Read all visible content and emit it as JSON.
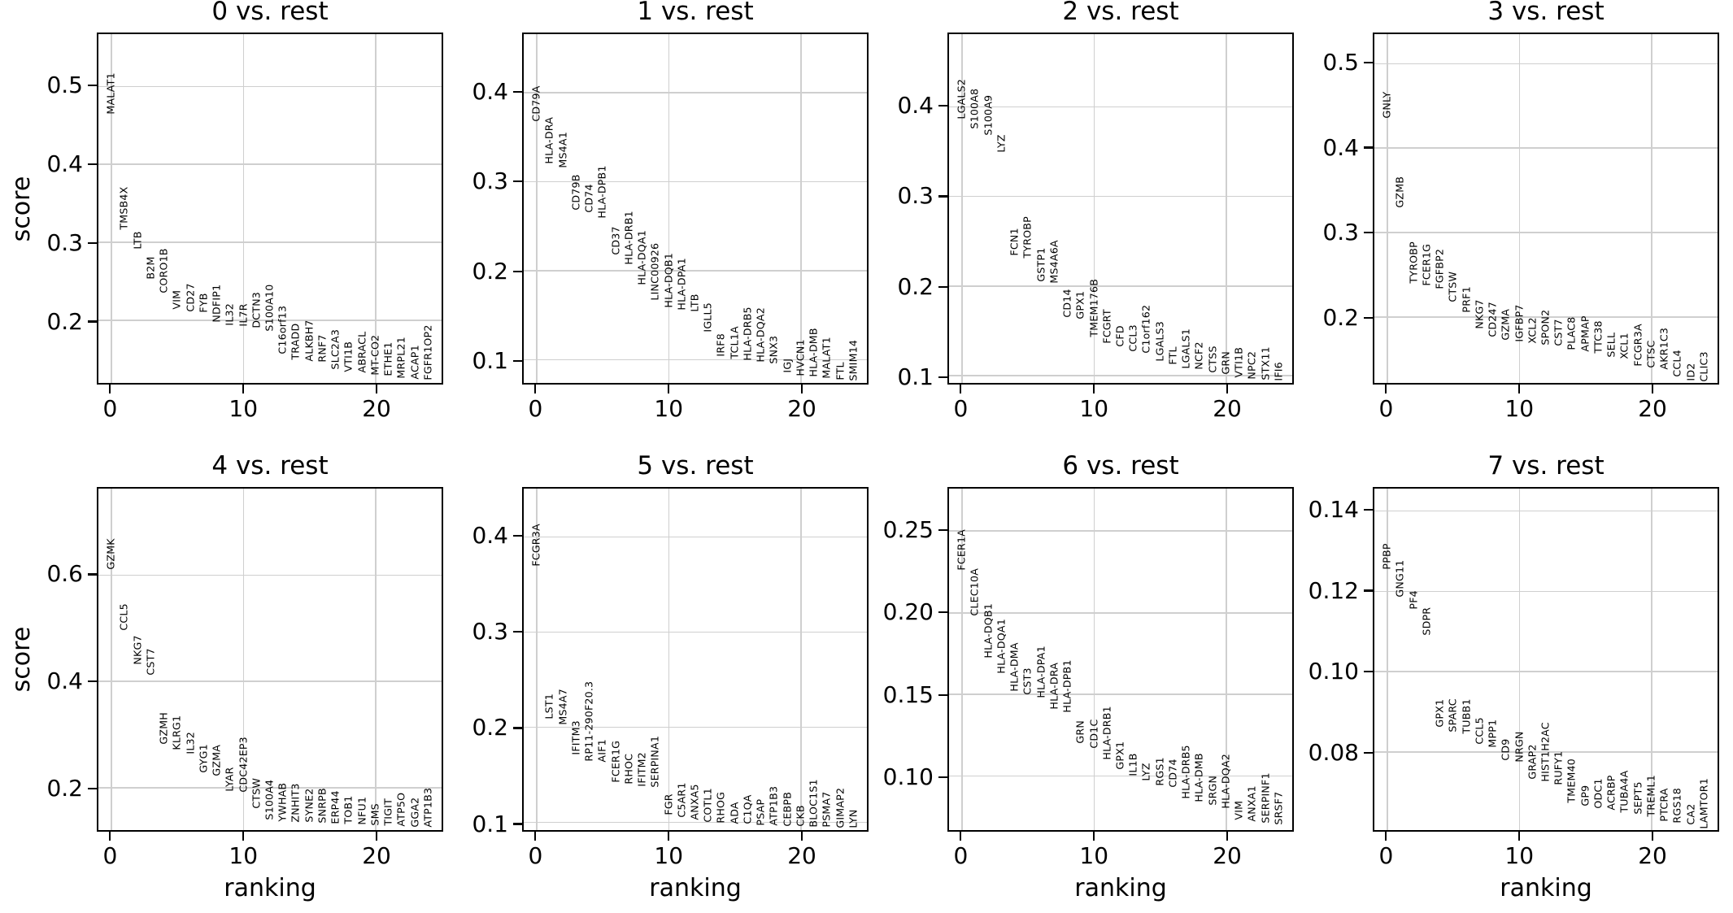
{
  "figure": {
    "ylabel": "score",
    "xlabel": "ranking",
    "grid_color": "#cfcfcf",
    "text_color": "#000000",
    "background": "#ffffff"
  },
  "chart_data": [
    {
      "type": "scatter",
      "title": "0 vs. rest",
      "xlabel": "ranking",
      "ylabel": "score",
      "grid": true,
      "legend": "none",
      "xlim": [
        -1.0,
        25.0
      ],
      "x_ticks": [
        0,
        10,
        20
      ],
      "x_tick_labels": [
        "0",
        "10",
        "20"
      ],
      "ylim": [
        0.12,
        0.567
      ],
      "y_ticks": [
        0.2,
        0.3,
        0.4,
        0.5
      ],
      "y_tick_labels": [
        "0.2",
        "0.3",
        "0.4",
        "0.5"
      ],
      "genes": [
        "MALAT1",
        "TMSB4X",
        "LTB",
        "B2M",
        "CORO1B",
        "VIM",
        "CD27",
        "FYB",
        "NDFIP1",
        "IL32",
        "IL7R",
        "DCTN3",
        "S100A10",
        "C16orf13",
        "TRADD",
        "ALKBH7",
        "RNF7",
        "SLC2A3",
        "VTI1B",
        "ABRACL",
        "MT-CO2",
        "ETHE1",
        "MRPL21",
        "ACAP1",
        "FGFR1OP2"
      ],
      "scores": [
        0.464,
        0.316,
        0.291,
        0.253,
        0.235,
        0.214,
        0.211,
        0.21,
        0.198,
        0.193,
        0.192,
        0.19,
        0.186,
        0.157,
        0.15,
        0.148,
        0.146,
        0.137,
        0.134,
        0.133,
        0.13,
        0.129,
        0.126,
        0.125,
        0.124
      ]
    },
    {
      "type": "scatter",
      "title": "1 vs. rest",
      "xlabel": "ranking",
      "ylabel": "score",
      "grid": true,
      "legend": "none",
      "xlim": [
        -1.0,
        25.0
      ],
      "x_ticks": [
        0,
        10,
        20
      ],
      "x_tick_labels": [
        "0",
        "10",
        "20"
      ],
      "ylim": [
        0.074,
        0.466
      ],
      "y_ticks": [
        0.1,
        0.2,
        0.3,
        0.4
      ],
      "y_tick_labels": [
        "0.1",
        "0.2",
        "0.3",
        "0.4"
      ],
      "genes": [
        "CD79A",
        "HLA-DRA",
        "MS4A1",
        "CD79B",
        "CD74",
        "HLA-DPB1",
        "CD37",
        "HLA-DRB1",
        "HLA-DQA1",
        "LINC00926",
        "HLA-DQB1",
        "HLA-DPA1",
        "LTB",
        "IGLL5",
        "IRF8",
        "TCL1A",
        "HLA-DRB5",
        "HLA-DQA2",
        "SNX3",
        "IGJ",
        "HVCN1",
        "HLA-DMB",
        "MALAT1",
        "FTL",
        "SMIM14"
      ],
      "scores": [
        0.368,
        0.32,
        0.316,
        0.268,
        0.265,
        0.259,
        0.218,
        0.207,
        0.184,
        0.167,
        0.158,
        0.156,
        0.154,
        0.131,
        0.104,
        0.101,
        0.099,
        0.097,
        0.095,
        0.085,
        0.082,
        0.081,
        0.079,
        0.077,
        0.076
      ]
    },
    {
      "type": "scatter",
      "title": "2 vs. rest",
      "xlabel": "ranking",
      "ylabel": "score",
      "grid": true,
      "legend": "none",
      "xlim": [
        -1.0,
        25.0
      ],
      "x_ticks": [
        0,
        10,
        20
      ],
      "x_tick_labels": [
        "0",
        "10",
        "20"
      ],
      "ylim": [
        0.092,
        0.481
      ],
      "y_ticks": [
        0.1,
        0.2,
        0.3,
        0.4
      ],
      "y_tick_labels": [
        "0.1",
        "0.2",
        "0.3",
        "0.4"
      ],
      "genes": [
        "LGALS2",
        "S100A8",
        "S100A9",
        "LYZ",
        "FCN1",
        "TYROBP",
        "GSTP1",
        "MS4A6A",
        "CD14",
        "GPX1",
        "TMEM176B",
        "FCGRT",
        "CFD",
        "CCL3",
        "C1orf162",
        "LGALS3",
        "FTL",
        "LGALS1",
        "NCF2",
        "CTSS",
        "GRN",
        "VTI1B",
        "NPC2",
        "STX11",
        "IFI6"
      ],
      "scores": [
        0.386,
        0.375,
        0.368,
        0.349,
        0.234,
        0.231,
        0.205,
        0.203,
        0.165,
        0.163,
        0.143,
        0.136,
        0.132,
        0.127,
        0.125,
        0.116,
        0.112,
        0.108,
        0.107,
        0.103,
        0.101,
        0.098,
        0.096,
        0.095,
        0.094
      ]
    },
    {
      "type": "scatter",
      "title": "3 vs. rest",
      "xlabel": "ranking",
      "ylabel": "score",
      "grid": true,
      "legend": "none",
      "xlim": [
        -1.0,
        25.0
      ],
      "x_ticks": [
        0,
        10,
        20
      ],
      "x_tick_labels": [
        "0",
        "10",
        "20"
      ],
      "ylim": [
        0.122,
        0.535
      ],
      "y_ticks": [
        0.2,
        0.3,
        0.4,
        0.5
      ],
      "y_tick_labels": [
        "0.2",
        "0.3",
        "0.4",
        "0.5"
      ],
      "genes": [
        "GNLY",
        "GZMB",
        "TYROBP",
        "FCER1G",
        "FGFBP2",
        "CTSW",
        "PRF1",
        "NKG7",
        "CD247",
        "GZMA",
        "IGFBP7",
        "XCL2",
        "SPON2",
        "CST7",
        "PLAC8",
        "APMAP",
        "TTC38",
        "SELL",
        "XCL1",
        "FCGR3A",
        "CTSC",
        "AKR1C3",
        "CCL4",
        "ID2",
        "CLIC3"
      ],
      "scores": [
        0.435,
        0.329,
        0.24,
        0.237,
        0.233,
        0.218,
        0.205,
        0.186,
        0.176,
        0.172,
        0.171,
        0.169,
        0.167,
        0.166,
        0.161,
        0.159,
        0.157,
        0.152,
        0.15,
        0.142,
        0.14,
        0.138,
        0.129,
        0.124,
        0.123
      ]
    },
    {
      "type": "scatter",
      "title": "4 vs. rest",
      "xlabel": "ranking",
      "ylabel": "score",
      "grid": true,
      "legend": "none",
      "xlim": [
        -1.0,
        25.0
      ],
      "x_ticks": [
        0,
        10,
        20
      ],
      "x_tick_labels": [
        "0",
        "10",
        "20"
      ],
      "ylim": [
        0.12,
        0.763
      ],
      "y_ticks": [
        0.2,
        0.4,
        0.6
      ],
      "y_tick_labels": [
        "0.2",
        "0.4",
        "0.6"
      ],
      "genes": [
        "GZMK",
        "CCL5",
        "NKG7",
        "CST7",
        "GZMH",
        "KLRG1",
        "IL32",
        "GYG1",
        "GZMA",
        "LYAR",
        "CDC42EP3",
        "CTSW",
        "S100A4",
        "YWHAB",
        "ZNHIT3",
        "SYNE2",
        "SNRPB",
        "ERP44",
        "TOB1",
        "NFU1",
        "SMS",
        "TIGIT",
        "ATP5O",
        "GGA2",
        "ATP1B3"
      ],
      "scores": [
        0.611,
        0.496,
        0.432,
        0.412,
        0.281,
        0.27,
        0.263,
        0.228,
        0.222,
        0.193,
        0.191,
        0.161,
        0.139,
        0.136,
        0.135,
        0.134,
        0.133,
        0.132,
        0.131,
        0.13,
        0.129,
        0.128,
        0.127,
        0.126,
        0.125
      ]
    },
    {
      "type": "scatter",
      "title": "5 vs. rest",
      "xlabel": "ranking",
      "ylabel": "score",
      "grid": true,
      "legend": "none",
      "xlim": [
        -1.0,
        25.0
      ],
      "x_ticks": [
        0,
        10,
        20
      ],
      "x_tick_labels": [
        "0",
        "10",
        "20"
      ],
      "ylim": [
        0.092,
        0.451
      ],
      "y_ticks": [
        0.1,
        0.2,
        0.3,
        0.4
      ],
      "y_tick_labels": [
        "0.1",
        "0.2",
        "0.3",
        "0.4"
      ],
      "genes": [
        "FCGR3A",
        "LST1",
        "MS4A7",
        "IFITM3",
        "RP11-290F20.3",
        "AIF1",
        "FCER1G",
        "RHOC",
        "IFITM2",
        "SERPINA1",
        "FGR",
        "C5AR1",
        "ANXA5",
        "COTL1",
        "RHOG",
        "ADA",
        "C1QA",
        "PSAP",
        "ATP1B3",
        "CEBPB",
        "CKB",
        "BLOC1S1",
        "PSMA7",
        "GIMAP2",
        "LYN"
      ],
      "scores": [
        0.369,
        0.209,
        0.203,
        0.171,
        0.164,
        0.163,
        0.142,
        0.14,
        0.138,
        0.137,
        0.108,
        0.105,
        0.103,
        0.1,
        0.099,
        0.098,
        0.098,
        0.097,
        0.097,
        0.096,
        0.096,
        0.095,
        0.095,
        0.094,
        0.094
      ]
    },
    {
      "type": "scatter",
      "title": "6 vs. rest",
      "xlabel": "ranking",
      "ylabel": "score",
      "grid": true,
      "legend": "none",
      "xlim": [
        -1.0,
        25.0
      ],
      "x_ticks": [
        0,
        10,
        20
      ],
      "x_tick_labels": [
        "0",
        "10",
        "20"
      ],
      "ylim": [
        0.067,
        0.276
      ],
      "y_ticks": [
        0.1,
        0.15,
        0.2,
        0.25
      ],
      "y_tick_labels": [
        "0.10",
        "0.15",
        "0.20",
        "0.25"
      ],
      "genes": [
        "FCER1A",
        "CLEC10A",
        "HLA-DQB1",
        "HLA-DQA1",
        "HLA-DMA",
        "CST3",
        "HLA-DPA1",
        "HLA-DRA",
        "HLA-DPB1",
        "GRN",
        "CD1C",
        "HLA-DRB1",
        "GPX1",
        "IL1B",
        "LYZ",
        "RGS1",
        "CD74",
        "HLA-DRB5",
        "HLA-DMB",
        "SRGN",
        "HLA-DQA2",
        "VIM",
        "ANXA1",
        "SERPINF1",
        "SRSF7"
      ],
      "scores": [
        0.226,
        0.198,
        0.172,
        0.163,
        0.152,
        0.15,
        0.148,
        0.141,
        0.139,
        0.12,
        0.117,
        0.11,
        0.104,
        0.1,
        0.097,
        0.094,
        0.093,
        0.086,
        0.084,
        0.082,
        0.08,
        0.073,
        0.072,
        0.071,
        0.07
      ]
    },
    {
      "type": "scatter",
      "title": "7 vs. rest",
      "xlabel": "ranking",
      "ylabel": "score",
      "grid": true,
      "legend": "none",
      "xlim": [
        -1.0,
        25.0
      ],
      "x_ticks": [
        0,
        10,
        20
      ],
      "x_tick_labels": [
        "0",
        "10",
        "20"
      ],
      "ylim": [
        0.0605,
        0.1456
      ],
      "y_ticks": [
        0.08,
        0.1,
        0.12,
        0.14
      ],
      "y_tick_labels": [
        "0.08",
        "0.10",
        "0.12",
        "0.14"
      ],
      "genes": [
        "PPBP",
        "GNG11",
        "PF4",
        "SDPR",
        "GPX1",
        "SPARC",
        "TUBB1",
        "CCL5",
        "MPP1",
        "CD9",
        "NRGN",
        "GRAP2",
        "HIST1H2AC",
        "RUFY1",
        "TMEM40",
        "GP9",
        "ODC1",
        "ACRBP",
        "TUBA4A",
        "SEPT5",
        "TREML1",
        "PTCRA",
        "RGS18",
        "CA2",
        "LAMTOR1"
      ],
      "scores": [
        0.1254,
        0.1186,
        0.1154,
        0.109,
        0.0862,
        0.0848,
        0.0844,
        0.0818,
        0.081,
        0.0778,
        0.0774,
        0.0732,
        0.0726,
        0.0718,
        0.0672,
        0.0664,
        0.0658,
        0.0654,
        0.0648,
        0.0644,
        0.0638,
        0.0626,
        0.0622,
        0.0618,
        0.0608
      ]
    }
  ]
}
